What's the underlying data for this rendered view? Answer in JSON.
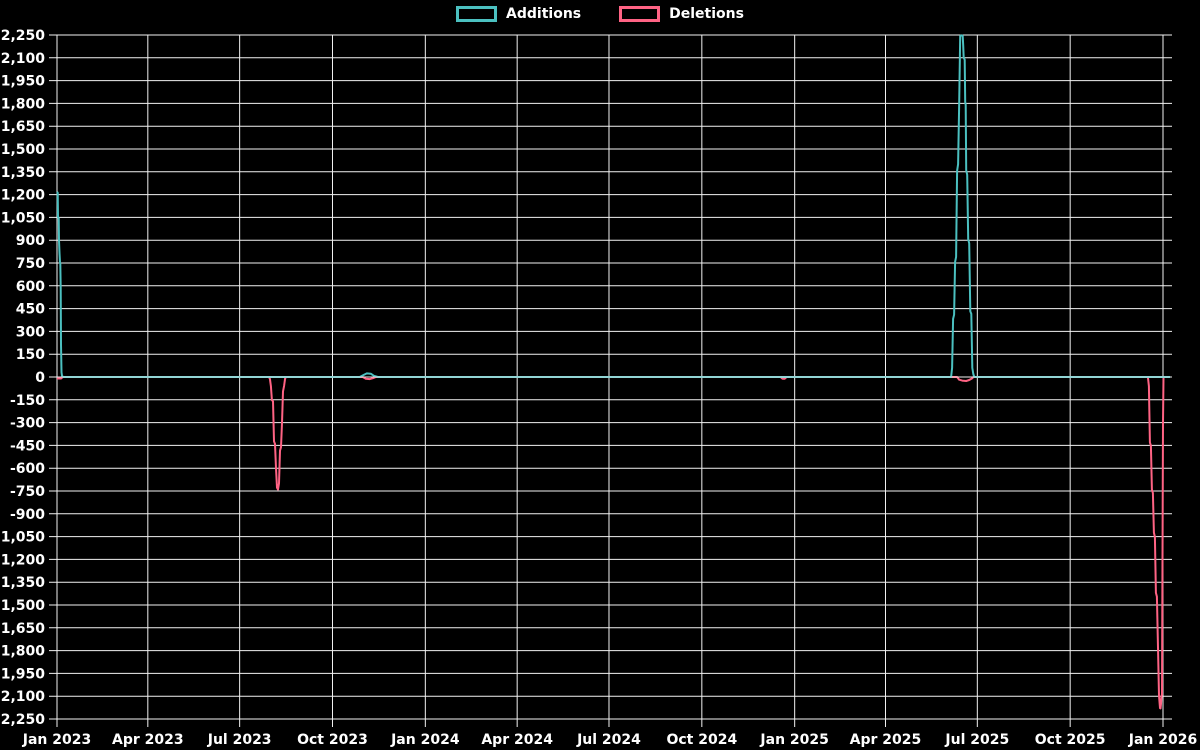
{
  "legend": {
    "items": [
      {
        "label": "Additions",
        "color": "#4bc0c0"
      },
      {
        "label": "Deletions",
        "color": "#ff6384"
      }
    ]
  },
  "colors": {
    "background": "#000000",
    "grid": "#f2f2f2",
    "axis_text": "#ffffff",
    "additions": "#4bc0c0",
    "deletions": "#ff6384",
    "zero_line_blend": "#8db8bd"
  },
  "chart_data": {
    "type": "line",
    "title": "",
    "xlabel": "",
    "ylabel": "",
    "legend_position": "top-center",
    "grid": true,
    "ylim": [
      -2250,
      2250
    ],
    "y_tick_step": 150,
    "y_tick_values": [
      2250,
      2100,
      1950,
      1800,
      1650,
      1500,
      1350,
      1200,
      1050,
      900,
      750,
      600,
      450,
      300,
      150,
      0,
      -150,
      -300,
      -450,
      -600,
      -750,
      -900,
      -1050,
      -1200,
      -1350,
      -1500,
      -1650,
      -1800,
      -1950,
      -2100,
      -2250
    ],
    "y_tick_labels": [
      "2,250",
      "2,100",
      "1,950",
      "1,800",
      "1,650",
      "1,500",
      "1,350",
      "1,200",
      "1,050",
      "900",
      "750",
      "600",
      "450",
      "300",
      "150",
      "0",
      "-150",
      "-300",
      "-450",
      "-600",
      "-750",
      "-900",
      "-1,050",
      "-1,200",
      "-1,350",
      "-1,500",
      "-1,650",
      "-1,800",
      "-1,950",
      "-2,100",
      "-2,250"
    ],
    "x_axis_domain_days": [
      0,
      1103
    ],
    "x_ticks": [
      {
        "day": 0,
        "label": "Jan 2023"
      },
      {
        "day": 90,
        "label": "Apr 2023"
      },
      {
        "day": 181,
        "label": "Jul 2023"
      },
      {
        "day": 273,
        "label": "Oct 2023"
      },
      {
        "day": 365,
        "label": "Jan 2024"
      },
      {
        "day": 456,
        "label": "Apr 2024"
      },
      {
        "day": 547,
        "label": "Jul 2024"
      },
      {
        "day": 639,
        "label": "Oct 2024"
      },
      {
        "day": 731,
        "label": "Jan 2025"
      },
      {
        "day": 821,
        "label": "Apr 2025"
      },
      {
        "day": 912,
        "label": "Jul 2025"
      },
      {
        "day": 1004,
        "label": "Oct 2025"
      },
      {
        "day": 1096,
        "label": "Jan 2026"
      }
    ],
    "series": [
      {
        "name": "Additions",
        "color": "#4bc0c0",
        "points": [
          [
            0,
            1218
          ],
          [
            0.7,
            1212
          ],
          [
            1,
            1050
          ],
          [
            1.7,
            1046
          ],
          [
            2,
            898
          ],
          [
            2.5,
            815
          ],
          [
            3,
            752
          ],
          [
            3.3,
            748
          ],
          [
            3.7,
            580
          ],
          [
            4,
            213
          ],
          [
            4.5,
            30
          ],
          [
            5,
            8
          ],
          [
            6,
            0
          ],
          [
            300,
            0
          ],
          [
            304,
            14
          ],
          [
            307,
            24
          ],
          [
            311,
            22
          ],
          [
            314,
            8
          ],
          [
            318,
            0
          ],
          [
            886,
            0
          ],
          [
            887,
            60
          ],
          [
            888,
            382
          ],
          [
            889,
            410
          ],
          [
            890,
            758
          ],
          [
            891,
            790
          ],
          [
            892,
            1356
          ],
          [
            893,
            1400
          ],
          [
            894,
            1806
          ],
          [
            895,
            2244
          ],
          [
            896.5,
            2248
          ],
          [
            897.5,
            2244
          ],
          [
            898,
            2180
          ],
          [
            898.5,
            2100
          ],
          [
            899.5,
            2088
          ],
          [
            900,
            1810
          ],
          [
            900.5,
            1790
          ],
          [
            901,
            1360
          ],
          [
            902,
            1330
          ],
          [
            903,
            905
          ],
          [
            904,
            880
          ],
          [
            905,
            432
          ],
          [
            906,
            415
          ],
          [
            907,
            60
          ],
          [
            908,
            20
          ],
          [
            909,
            0
          ],
          [
            1103,
            0
          ]
        ]
      },
      {
        "name": "Deletions",
        "color": "#ff6384",
        "points": [
          [
            0,
            -10
          ],
          [
            4,
            -10
          ],
          [
            5,
            -4
          ],
          [
            6,
            0
          ],
          [
            210,
            0
          ],
          [
            211,
            -12
          ],
          [
            212,
            -60
          ],
          [
            213,
            -152
          ],
          [
            214,
            -160
          ],
          [
            215,
            -424
          ],
          [
            216,
            -440
          ],
          [
            217,
            -600
          ],
          [
            218,
            -728
          ],
          [
            219,
            -740
          ],
          [
            220,
            -700
          ],
          [
            221,
            -484
          ],
          [
            222,
            -462
          ],
          [
            223,
            -302
          ],
          [
            224,
            -95
          ],
          [
            225,
            -58
          ],
          [
            226,
            -10
          ],
          [
            227,
            0
          ],
          [
            303,
            0
          ],
          [
            306,
            -12
          ],
          [
            310,
            -14
          ],
          [
            313,
            -8
          ],
          [
            316,
            0
          ],
          [
            717,
            0
          ],
          [
            719,
            -12
          ],
          [
            721,
            -12
          ],
          [
            723,
            0
          ],
          [
            892,
            0
          ],
          [
            894,
            -18
          ],
          [
            897,
            -24
          ],
          [
            901,
            -26
          ],
          [
            904,
            -20
          ],
          [
            907,
            -8
          ],
          [
            908,
            0
          ],
          [
            1081,
            0
          ],
          [
            1082,
            -60
          ],
          [
            1083,
            -430
          ],
          [
            1084,
            -452
          ],
          [
            1085,
            -740
          ],
          [
            1086,
            -764
          ],
          [
            1087,
            -1024
          ],
          [
            1088,
            -1052
          ],
          [
            1089,
            -1420
          ],
          [
            1090,
            -1445
          ],
          [
            1091,
            -1780
          ],
          [
            1092,
            -2096
          ],
          [
            1093,
            -2178
          ],
          [
            1093.5,
            -2180
          ],
          [
            1094,
            -2150
          ],
          [
            1094.5,
            -2100
          ],
          [
            1095,
            -2088
          ],
          [
            1095.5,
            -1200
          ],
          [
            1096,
            -300
          ],
          [
            1096.5,
            0
          ],
          [
            1100,
            0
          ]
        ]
      }
    ]
  }
}
